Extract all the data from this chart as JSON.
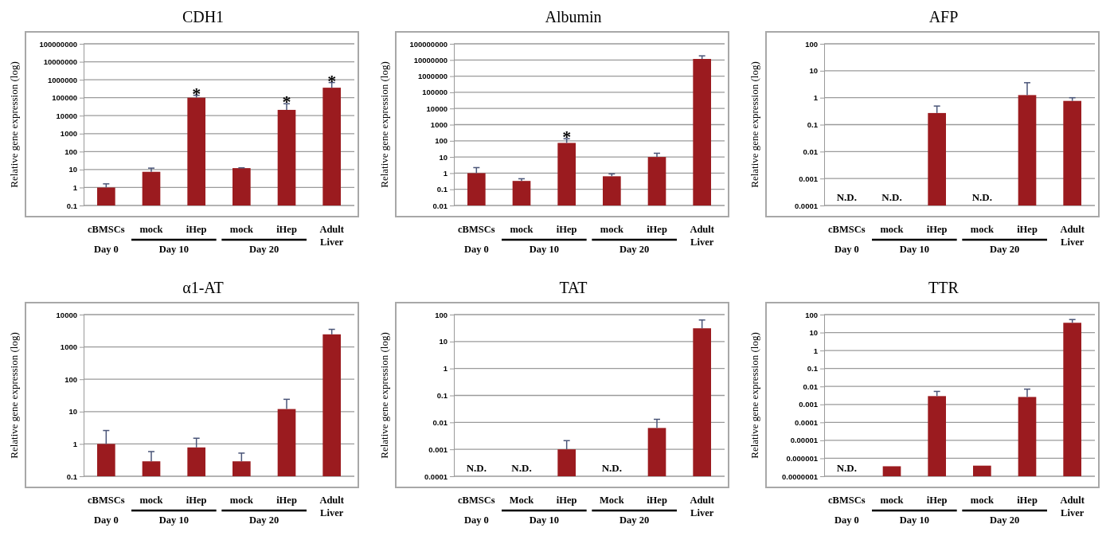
{
  "chart_data": [
    {
      "type": "bar",
      "title": "CDH1",
      "ylabel": "Relative gene expression (log)",
      "categories": [
        "cBMSCs",
        "mock",
        "iHep",
        "mock",
        "iHep",
        "Adult Liver"
      ],
      "values": [
        1,
        7.5,
        100000,
        12,
        21000,
        360000
      ],
      "errors": [
        [
          1,
          1.6
        ],
        [
          7.5,
          12
        ],
        [
          100000,
          136000
        ],
        [
          12,
          12.5
        ],
        [
          21000,
          46000
        ],
        [
          360000,
          700000
        ]
      ],
      "value_labels": [
        null,
        null,
        "*",
        null,
        "*",
        "*"
      ],
      "color": "#9b1b1f",
      "log": "y",
      "grid": "y",
      "ylim": [
        0.1,
        100000000
      ],
      "yticks": [
        0.1,
        1,
        10,
        100,
        1000,
        10000,
        100000,
        1000000,
        10000000,
        100000000
      ],
      "annotations": [
        "Day 0",
        "Day 10",
        "Day 20"
      ]
    },
    {
      "type": "bar",
      "title": "Albumin",
      "ylabel": "Relative gene expression (log)",
      "categories": [
        "cBMSCs",
        "mock",
        "iHep",
        "mock",
        "iHep",
        "Adult Liver"
      ],
      "values": [
        1,
        0.33,
        74,
        0.64,
        10,
        11600000
      ],
      "errors": [
        [
          1,
          2.2
        ],
        [
          0.33,
          0.45
        ],
        [
          74,
          135
        ],
        [
          0.64,
          0.9
        ],
        [
          10,
          17
        ],
        [
          11600000,
          18000000
        ]
      ],
      "value_labels": [
        null,
        null,
        "*",
        null,
        null,
        null
      ],
      "color": "#9b1b1f",
      "log": "y",
      "grid": "y",
      "ylim": [
        0.01,
        100000000
      ],
      "yticks": [
        0.01,
        0.1,
        1,
        10,
        100,
        1000,
        10000,
        100000,
        1000000,
        10000000,
        100000000
      ],
      "annotations": [
        "Day 0",
        "Day 10",
        "Day 20"
      ]
    },
    {
      "type": "bar",
      "title": "AFP",
      "ylabel": "Relative gene expression (log)",
      "categories": [
        "cBMSCs",
        "mock",
        "iHep",
        "mock",
        "iHep",
        "Adult Liver"
      ],
      "values": [
        null,
        null,
        0.27,
        null,
        1.25,
        0.76
      ],
      "errors": [
        null,
        null,
        [
          0.27,
          0.49
        ],
        null,
        [
          1.25,
          3.6
        ],
        [
          0.76,
          1
        ]
      ],
      "value_labels": [
        "N.D.",
        "N.D.",
        null,
        "N.D.",
        null,
        null
      ],
      "color": "#9b1b1f",
      "log": "y",
      "grid": "y",
      "ylim": [
        0.0001,
        100
      ],
      "yticks": [
        0.0001,
        0.001,
        0.01,
        0.1,
        1,
        10,
        100
      ],
      "annotations": [
        "Day 0",
        "Day 10",
        "Day 20"
      ]
    },
    {
      "type": "bar",
      "title": "α1-AT",
      "ylabel": "Relative gene expression (log)",
      "categories": [
        "cBMSCs",
        "mock",
        "iHep",
        "mock",
        "iHep",
        "Adult Liver"
      ],
      "values": [
        1,
        0.29,
        0.78,
        0.29,
        12,
        2450
      ],
      "errors": [
        [
          1,
          2.6
        ],
        [
          0.29,
          0.58
        ],
        [
          0.78,
          1.5
        ],
        [
          0.29,
          0.52
        ],
        [
          12,
          24
        ],
        [
          2450,
          3500
        ]
      ],
      "color": "#9b1b1f",
      "log": "y",
      "grid": "y",
      "ylim": [
        0.1,
        10000
      ],
      "yticks": [
        0.1,
        1,
        10,
        100,
        1000,
        10000
      ],
      "annotations": [
        "Day 0",
        "Day 10",
        "Day 20"
      ]
    },
    {
      "type": "bar",
      "title": "TAT",
      "ylabel": "Relative gene expression (log)",
      "categories": [
        "cBMSCs",
        "Mock",
        "iHep",
        "Mock",
        "iHep",
        "Adult Liver"
      ],
      "values": [
        null,
        null,
        0.001,
        null,
        0.0062,
        31
      ],
      "errors": [
        null,
        null,
        [
          0.001,
          0.0021
        ],
        null,
        [
          0.0062,
          0.013
        ],
        [
          31,
          63
        ]
      ],
      "value_labels": [
        "N.D.",
        "N.D.",
        null,
        "N.D.",
        null,
        null
      ],
      "color": "#9b1b1f",
      "log": "y",
      "grid": "y",
      "ylim": [
        0.0001,
        100
      ],
      "yticks": [
        0.0001,
        0.001,
        0.01,
        0.1,
        1,
        10,
        100
      ],
      "annotations": [
        "Day 0",
        "Day 10",
        "Day 20"
      ]
    },
    {
      "type": "bar",
      "title": "TTR",
      "ylabel": "Relative gene expression (log)",
      "categories": [
        "cBMSCs",
        "mock",
        "iHep",
        "mock",
        "iHep",
        "Adult Liver"
      ],
      "values": [
        null,
        3.6e-07,
        0.0029,
        3.9e-07,
        0.0026,
        35
      ],
      "errors": [
        null,
        null,
        [
          0.0029,
          0.0053
        ],
        null,
        [
          0.0026,
          0.0071
        ],
        [
          35,
          53
        ]
      ],
      "value_labels": [
        "N.D.",
        null,
        null,
        null,
        null,
        null
      ],
      "color": "#9b1b1f",
      "log": "y",
      "grid": "y",
      "ylim": [
        1e-07,
        100
      ],
      "yticks": [
        {
          "value": 1e-07,
          "label": "0.0000001"
        },
        {
          "value": 1e-06,
          "label": "0.000001"
        },
        {
          "value": 1e-05,
          "label": "0.00001"
        },
        0.0001,
        0.001,
        0.01,
        0.1,
        1,
        10,
        100
      ],
      "annotations": [
        "Day 0",
        "Day 10",
        "Day 20"
      ]
    }
  ]
}
